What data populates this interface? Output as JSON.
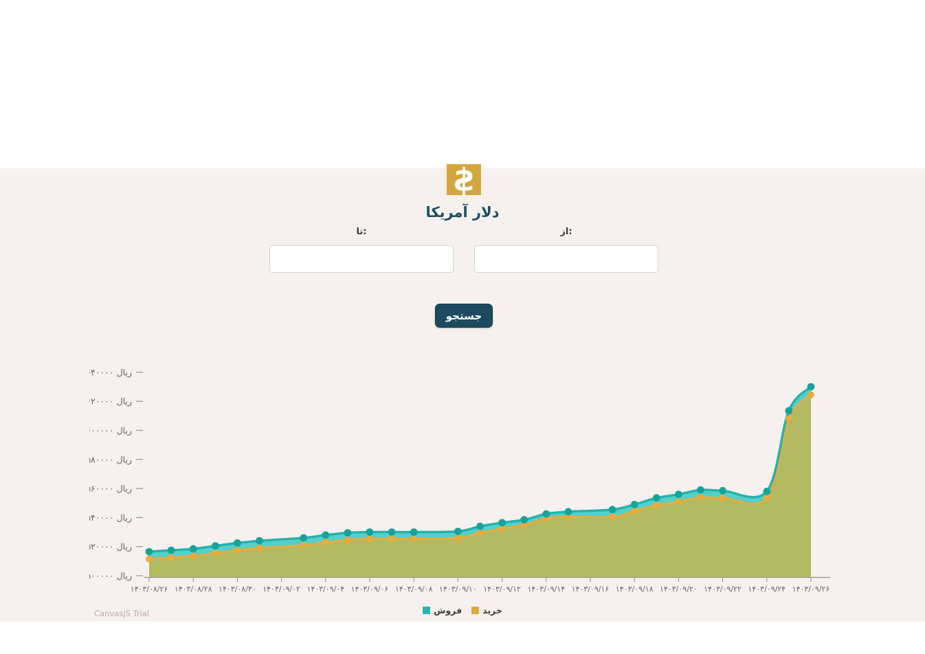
{
  "page": {
    "background_top": "#ffffff",
    "background_main": "#f6f1ef"
  },
  "header": {
    "icon_glyph": "$",
    "icon_bg": "#d2a63c",
    "title": "دلار آمریکا",
    "title_color": "#1d4f63"
  },
  "form": {
    "to_label": "تا:",
    "from_label": "از:",
    "to_value": "",
    "from_value": "",
    "search_button": "جستجو",
    "button_bg": "#1d4a5f"
  },
  "chart_data": {
    "type": "area",
    "smooth": true,
    "title": "",
    "xlabel": "",
    "ylabel": "ریال",
    "ylim": [
      500000,
      650000
    ],
    "grid": false,
    "legend_position": "bottom-center",
    "y_ticks": [
      {
        "value": 500000,
        "label": "۵۰۰۰۰۰ ریال"
      },
      {
        "value": 520000,
        "label": "۵۲۰۰۰۰ ریال"
      },
      {
        "value": 540000,
        "label": "۵۴۰۰۰۰ ریال"
      },
      {
        "value": 560000,
        "label": "۵۶۰۰۰۰ ریال"
      },
      {
        "value": 580000,
        "label": "۵۸۰۰۰۰ ریال"
      },
      {
        "value": 600000,
        "label": "۶۰۰۰۰۰ ریال"
      },
      {
        "value": 620000,
        "label": "۶۲۰۰۰۰ ریال"
      },
      {
        "value": 640000,
        "label": "۶۴۰۰۰۰ ریال"
      }
    ],
    "x_ticks": [
      {
        "day": 0,
        "label": "۱۴۰۳/۰۸/۲۶"
      },
      {
        "day": 2,
        "label": "۱۴۰۳/۰۸/۲۸"
      },
      {
        "day": 4,
        "label": "۱۴۰۳/۰۸/۳۰"
      },
      {
        "day": 6,
        "label": "۱۴۰۳/۰۹/۰۲"
      },
      {
        "day": 8,
        "label": "۱۴۰۳/۰۹/۰۴"
      },
      {
        "day": 10,
        "label": "۱۴۰۳/۰۹/۰۶"
      },
      {
        "day": 12,
        "label": "۱۴۰۳/۰۹/۰۸"
      },
      {
        "day": 14,
        "label": "۱۴۰۳/۰۹/۱۰"
      },
      {
        "day": 16,
        "label": "۱۴۰۳/۰۹/۱۲"
      },
      {
        "day": 18,
        "label": "۱۴۰۳/۰۹/۱۴"
      },
      {
        "day": 20,
        "label": "۱۴۰۳/۰۹/۱۶"
      },
      {
        "day": 22,
        "label": "۱۴۰۳/۰۹/۱۸"
      },
      {
        "day": 24,
        "label": "۱۴۰۳/۰۹/۲۰"
      },
      {
        "day": 26,
        "label": "۱۴۰۳/۰۹/۲۲"
      },
      {
        "day": 28,
        "label": "۱۴۰۳/۰۹/۲۴"
      },
      {
        "day": 30,
        "label": "۱۴۰۳/۰۹/۲۶"
      }
    ],
    "series": [
      {
        "name": "فروش",
        "line_color": "#26b2ab",
        "fill_color": "#56cfc8",
        "marker_color": "#17a39c",
        "points": [
          {
            "day": 0,
            "date": "۱۴۰۳/۰۸/۲۶",
            "value": 516500
          },
          {
            "day": 1,
            "date": "۱۴۰۳/۰۸/۲۷",
            "value": 517500
          },
          {
            "day": 2,
            "date": "۱۴۰۳/۰۸/۲۸",
            "value": 518500
          },
          {
            "day": 3,
            "date": "۱۴۰۳/۰۸/۲۹",
            "value": 520500
          },
          {
            "day": 4,
            "date": "۱۴۰۳/۰۸/۳۰",
            "value": 522500
          },
          {
            "day": 5,
            "date": "۱۴۰۳/۰۹/۰۱",
            "value": 524000
          },
          {
            "day": 7,
            "date": "۱۴۰۳/۰۹/۰۳",
            "value": 526000
          },
          {
            "day": 8,
            "date": "۱۴۰۳/۰۹/۰۴",
            "value": 528000
          },
          {
            "day": 9,
            "date": "۱۴۰۳/۰۹/۰۵",
            "value": 529500
          },
          {
            "day": 10,
            "date": "۱۴۰۳/۰۹/۰۶",
            "value": 530000
          },
          {
            "day": 11,
            "date": "۱۴۰۳/۰۹/۰۷",
            "value": 530000
          },
          {
            "day": 12,
            "date": "۱۴۰۳/۰۹/۰۸",
            "value": 530000
          },
          {
            "day": 14,
            "date": "۱۴۰۳/۰۹/۱۰",
            "value": 530500
          },
          {
            "day": 15,
            "date": "۱۴۰۳/۰۹/۱۱",
            "value": 534000
          },
          {
            "day": 16,
            "date": "۱۴۰۳/۰۹/۱۲",
            "value": 536500
          },
          {
            "day": 17,
            "date": "۱۴۰۳/۰۹/۱۳",
            "value": 538500
          },
          {
            "day": 18,
            "date": "۱۴۰۳/۰۹/۱۴",
            "value": 542500
          },
          {
            "day": 19,
            "date": "۱۴۰۳/۰۹/۱۵",
            "value": 544000
          },
          {
            "day": 21,
            "date": "۱۴۰۳/۰۹/۱۷",
            "value": 545500
          },
          {
            "day": 22,
            "date": "۱۴۰۳/۰۹/۱۸",
            "value": 549000
          },
          {
            "day": 23,
            "date": "۱۴۰۳/۰۹/۱۹",
            "value": 553500
          },
          {
            "day": 24,
            "date": "۱۴۰۳/۰۹/۲۰",
            "value": 556000
          },
          {
            "day": 25,
            "date": "۱۴۰۳/۰۹/۲۱",
            "value": 559000
          },
          {
            "day": 26,
            "date": "۱۴۰۳/۰۹/۲۲",
            "value": 558500
          },
          {
            "day": 28,
            "date": "۱۴۰۳/۰۹/۲۴",
            "value": 558000
          },
          {
            "day": 29,
            "date": "۱۴۰۳/۰۹/۲۵",
            "value": 613500
          },
          {
            "day": 30,
            "date": "۱۴۰۳/۰۹/۲۶",
            "value": 630000
          }
        ]
      },
      {
        "name": "خرید",
        "line_color": "#e8ac3e",
        "fill_color": "#b2ba62",
        "marker_color": "#e8ac3e",
        "points": [
          {
            "day": 0,
            "date": "۱۴۰۳/۰۸/۲۶",
            "value": 511500
          },
          {
            "day": 1,
            "date": "۱۴۰۳/۰۸/۲۷",
            "value": 512500
          },
          {
            "day": 2,
            "date": "۱۴۰۳/۰۸/۲۸",
            "value": 513500
          },
          {
            "day": 3,
            "date": "۱۴۰۳/۰۸/۲۹",
            "value": 515500
          },
          {
            "day": 4,
            "date": "۱۴۰۳/۰۸/۳۰",
            "value": 517500
          },
          {
            "day": 5,
            "date": "۱۴۰۳/۰۹/۰۱",
            "value": 519000
          },
          {
            "day": 7,
            "date": "۱۴۰۳/۰۹/۰۳",
            "value": 521000
          },
          {
            "day": 8,
            "date": "۱۴۰۳/۰۹/۰۴",
            "value": 523000
          },
          {
            "day": 9,
            "date": "۱۴۰۳/۰۹/۰۵",
            "value": 524500
          },
          {
            "day": 10,
            "date": "۱۴۰۳/۰۹/۰۶",
            "value": 525500
          },
          {
            "day": 11,
            "date": "۱۴۰۳/۰۹/۰۷",
            "value": 525500
          },
          {
            "day": 12,
            "date": "۱۴۰۳/۰۹/۰۸",
            "value": 525500
          },
          {
            "day": 14,
            "date": "۱۴۰۳/۰۹/۱۰",
            "value": 526000
          },
          {
            "day": 15,
            "date": "۱۴۰۳/۰۹/۱۱",
            "value": 529500
          },
          {
            "day": 16,
            "date": "۱۴۰۳/۰۹/۱۲",
            "value": 532500
          },
          {
            "day": 17,
            "date": "۱۴۰۳/۰۹/۱۳",
            "value": 535000
          },
          {
            "day": 18,
            "date": "۱۴۰۳/۰۹/۱۴",
            "value": 539500
          },
          {
            "day": 19,
            "date": "۱۴۰۳/۰۹/۱۵",
            "value": 540500
          },
          {
            "day": 21,
            "date": "۱۴۰۳/۰۹/۱۷",
            "value": 540500
          },
          {
            "day": 22,
            "date": "۱۴۰۳/۰۹/۱۸",
            "value": 544500
          },
          {
            "day": 23,
            "date": "۱۴۰۳/۰۹/۱۹",
            "value": 548500
          },
          {
            "day": 24,
            "date": "۱۴۰۳/۰۹/۲۰",
            "value": 551000
          },
          {
            "day": 25,
            "date": "۱۴۰۳/۰۹/۲۱",
            "value": 554000
          },
          {
            "day": 26,
            "date": "۱۴۰۳/۰۹/۲۲",
            "value": 553500
          },
          {
            "day": 28,
            "date": "۱۴۰۳/۰۹/۲۴",
            "value": 553500
          },
          {
            "day": 29,
            "date": "۱۴۰۳/۰۹/۲۵",
            "value": 608000
          },
          {
            "day": 30,
            "date": "۱۴۰۳/۰۹/۲۶",
            "value": 624500
          }
        ]
      }
    ],
    "legend": [
      {
        "label": "فروش",
        "color": "#2ab5ac"
      },
      {
        "label": "خرید",
        "color": "#ddaa3f"
      }
    ],
    "credit": "CanvasJS Trial"
  }
}
